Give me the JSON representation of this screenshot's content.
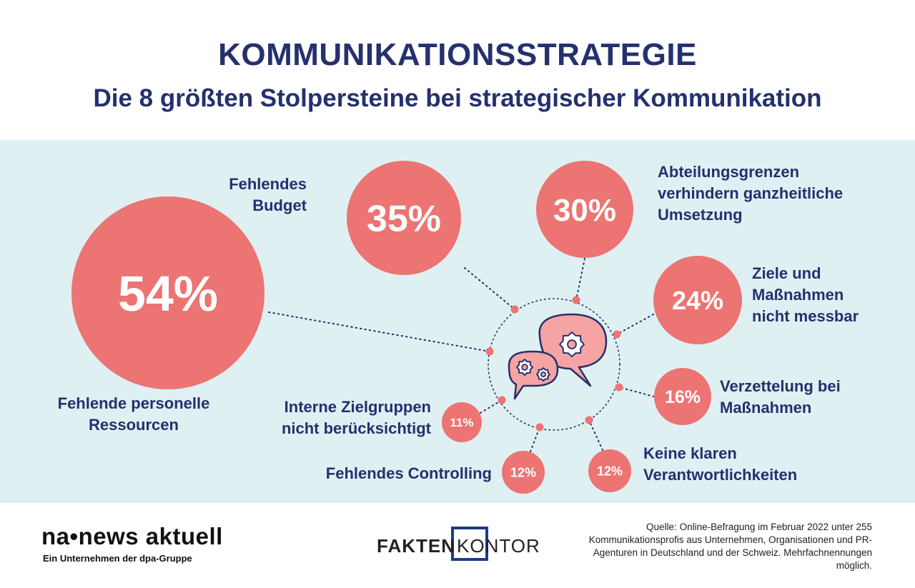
{
  "header": {
    "title": "KOMMUNIKATIONSSTRATEGIE",
    "subtitle": "Die 8 größten Stolpersteine bei strategischer Kommunikation"
  },
  "colors": {
    "circle": "#ec7473",
    "text_dark": "#25306e",
    "panel_bg": "#dff0f3",
    "dot": "#ec7473",
    "bubble_fill": "#f6a3a3",
    "bubble_stroke": "#25306e"
  },
  "chart_data": {
    "type": "bubble",
    "title": "Die 8 größten Stolpersteine bei strategischer Kommunikation",
    "unit": "%",
    "items": [
      {
        "label": "Fehlende personelle Ressourcen",
        "value": 54,
        "display": "54%"
      },
      {
        "label": "Fehlendes Budget",
        "value": 35,
        "display": "35%"
      },
      {
        "label": "Abteilungsgrenzen verhindern ganzheitliche Umsetzung",
        "value": 30,
        "display": "30%"
      },
      {
        "label": "Ziele und Maßnahmen nicht messbar",
        "value": 24,
        "display": "24%"
      },
      {
        "label": "Verzettelung bei Maßnahmen",
        "value": 16,
        "display": "16%"
      },
      {
        "label": "Keine klaren Verantwortlichkeiten",
        "value": 12,
        "display": "12%"
      },
      {
        "label": "Fehlendes Controlling",
        "value": 12,
        "display": "12%"
      },
      {
        "label": "Interne Zielgruppen nicht berücksichtigt",
        "value": 11,
        "display": "11%"
      }
    ]
  },
  "footer": {
    "na_logo": "na•news aktuell",
    "na_sub": "Ein Unternehmen der dpa-Gruppe",
    "fk_logo_bold": "FAKTEN",
    "fk_logo_light": "KONTOR",
    "source": "Quelle: Online-Befragung im Februar 2022 unter 255 Kommunikationsprofis aus Unternehmen, Organisationen und PR-Agenturen in Deutschland und der Schweiz. Mehrfachnennungen möglich."
  }
}
